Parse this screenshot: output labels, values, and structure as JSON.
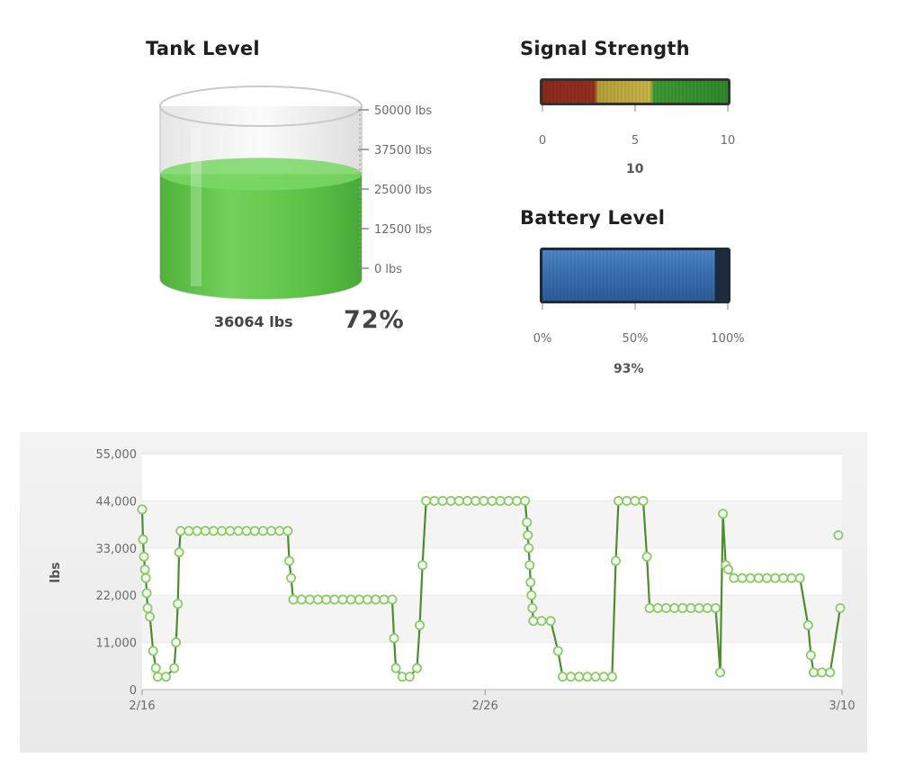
{
  "tank": {
    "title": "Tank Level",
    "scale_labels": [
      "50000 lbs",
      "37500 lbs",
      "25000 lbs",
      "12500 lbs",
      "0 lbs"
    ],
    "scale_max": 50000,
    "amount": "36064 lbs",
    "percent": "72%",
    "fill_fraction": 0.72,
    "fill_color": "#5cc24a"
  },
  "signal": {
    "title": "Signal Strength",
    "tick_labels": [
      "0",
      "5",
      "10"
    ],
    "value_label": "10",
    "value": 10,
    "max": 10
  },
  "battery": {
    "title": "Battery Level",
    "tick_labels": [
      "0%",
      "50%",
      "100%"
    ],
    "value_label": "93%",
    "value": 93,
    "bar_color": "#3a6fb0"
  },
  "chart_data": {
    "type": "line",
    "ylabel": "lbs",
    "ylim": [
      0,
      55000
    ],
    "y_ticks": [
      0,
      11000,
      22000,
      33000,
      44000,
      55000
    ],
    "y_tick_labels": [
      "0",
      "11,000",
      "22,000",
      "33,000",
      "44,000",
      "55,000"
    ],
    "x_tick_labels": [
      "2/16",
      "2/26",
      "3/10"
    ],
    "grid": true,
    "line_color": "#4a8f2a",
    "marker_color": "#8cc96a",
    "points": [
      [
        0,
        42000
      ],
      [
        0.05,
        35000
      ],
      [
        0.1,
        31000
      ],
      [
        0.15,
        28000
      ],
      [
        0.2,
        26000
      ],
      [
        0.25,
        22500
      ],
      [
        0.3,
        19000
      ],
      [
        0.42,
        17000
      ],
      [
        0.6,
        9000
      ],
      [
        0.75,
        5000
      ],
      [
        0.85,
        3000
      ],
      [
        1.3,
        3000
      ],
      [
        1.75,
        5000
      ],
      [
        1.85,
        11000
      ],
      [
        1.95,
        20000
      ],
      [
        2.02,
        32000
      ],
      [
        2.1,
        37000
      ],
      [
        2.55,
        37000
      ],
      [
        3.0,
        37000
      ],
      [
        3.45,
        37000
      ],
      [
        3.9,
        37000
      ],
      [
        4.35,
        37000
      ],
      [
        4.8,
        37000
      ],
      [
        5.25,
        37000
      ],
      [
        5.7,
        37000
      ],
      [
        6.15,
        37000
      ],
      [
        6.6,
        37000
      ],
      [
        7.05,
        37000
      ],
      [
        7.5,
        37000
      ],
      [
        7.95,
        37000
      ],
      [
        8.03,
        30000
      ],
      [
        8.13,
        26000
      ],
      [
        8.25,
        21000
      ],
      [
        8.7,
        21000
      ],
      [
        9.15,
        21000
      ],
      [
        9.6,
        21000
      ],
      [
        10.05,
        21000
      ],
      [
        10.5,
        21000
      ],
      [
        10.95,
        21000
      ],
      [
        11.4,
        21000
      ],
      [
        11.85,
        21000
      ],
      [
        12.3,
        21000
      ],
      [
        12.75,
        21000
      ],
      [
        13.2,
        21000
      ],
      [
        13.65,
        21000
      ],
      [
        13.75,
        12000
      ],
      [
        13.85,
        5000
      ],
      [
        14.2,
        3000
      ],
      [
        14.6,
        3000
      ],
      [
        15.0,
        5000
      ],
      [
        15.15,
        15000
      ],
      [
        15.3,
        29000
      ],
      [
        15.5,
        44000
      ],
      [
        15.95,
        44000
      ],
      [
        16.4,
        44000
      ],
      [
        16.85,
        44000
      ],
      [
        17.3,
        44000
      ],
      [
        17.75,
        44000
      ],
      [
        18.2,
        44000
      ],
      [
        18.65,
        44000
      ],
      [
        19.1,
        44000
      ],
      [
        19.55,
        44000
      ],
      [
        20.0,
        44000
      ],
      [
        20.45,
        44000
      ],
      [
        20.9,
        44000
      ],
      [
        21.0,
        39000
      ],
      [
        21.05,
        36000
      ],
      [
        21.1,
        33000
      ],
      [
        21.15,
        29000
      ],
      [
        21.2,
        25000
      ],
      [
        21.25,
        22000
      ],
      [
        21.3,
        19000
      ],
      [
        21.35,
        16000
      ],
      [
        21.8,
        16000
      ],
      [
        22.3,
        16000
      ],
      [
        22.7,
        9000
      ],
      [
        22.95,
        3000
      ],
      [
        23.4,
        3000
      ],
      [
        23.85,
        3000
      ],
      [
        24.3,
        3000
      ],
      [
        24.75,
        3000
      ],
      [
        25.2,
        3000
      ],
      [
        25.65,
        3000
      ],
      [
        25.85,
        30000
      ],
      [
        26.0,
        44000
      ],
      [
        26.45,
        44000
      ],
      [
        26.9,
        44000
      ],
      [
        27.35,
        44000
      ],
      [
        27.55,
        31000
      ],
      [
        27.7,
        19000
      ],
      [
        28.15,
        19000
      ],
      [
        28.6,
        19000
      ],
      [
        29.05,
        19000
      ],
      [
        29.5,
        19000
      ],
      [
        29.95,
        19000
      ],
      [
        30.4,
        19000
      ],
      [
        30.85,
        19000
      ],
      [
        31.3,
        19000
      ],
      [
        31.55,
        4000
      ],
      [
        31.7,
        41000
      ],
      [
        31.85,
        29000
      ],
      [
        32.0,
        28000
      ],
      [
        32.3,
        26000
      ],
      [
        32.75,
        26000
      ],
      [
        33.2,
        26000
      ],
      [
        33.65,
        26000
      ],
      [
        34.1,
        26000
      ],
      [
        34.55,
        26000
      ],
      [
        35.0,
        26000
      ],
      [
        35.45,
        26000
      ],
      [
        35.9,
        26000
      ],
      [
        36.35,
        15000
      ],
      [
        36.5,
        8000
      ],
      [
        36.65,
        4000
      ],
      [
        37.1,
        4000
      ],
      [
        37.55,
        4000
      ],
      [
        38.1,
        19000
      ]
    ],
    "extra_points": [
      [
        38.0,
        36000
      ]
    ],
    "x_range": [
      0,
      38.2
    ]
  }
}
